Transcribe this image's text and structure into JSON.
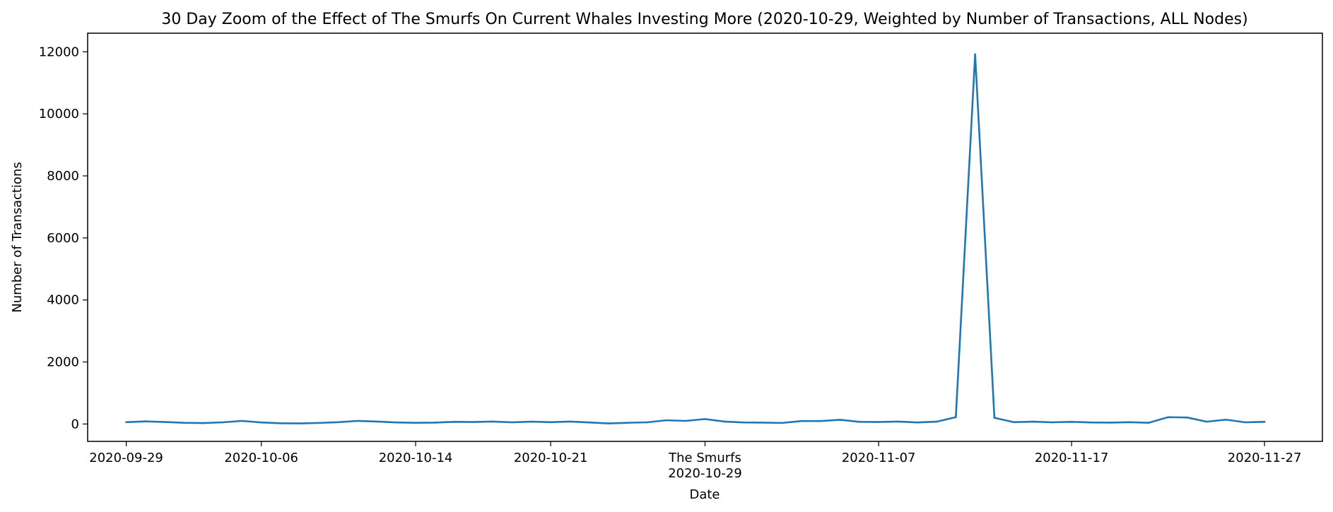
{
  "chart_data": {
    "type": "line",
    "title": "30 Day Zoom of the Effect of The Smurfs On Current Whales Investing More (2020-10-29, Weighted by Number of Transactions, ALL Nodes)",
    "xlabel": "Date",
    "ylabel": "Number of Transactions",
    "ylim": [
      -560,
      12600
    ],
    "xlim": [
      "2020-09-27",
      "2020-11-30"
    ],
    "grid": false,
    "series_color": "#1f77b4",
    "y_ticks": [
      0,
      2000,
      4000,
      6000,
      8000,
      10000,
      12000
    ],
    "x_ticks": [
      {
        "date": "2020-09-29",
        "label": "2020-09-29"
      },
      {
        "date": "2020-10-06",
        "label": "2020-10-06"
      },
      {
        "date": "2020-10-14",
        "label": "2020-10-14"
      },
      {
        "date": "2020-10-21",
        "label": "2020-10-21"
      },
      {
        "date": "2020-10-29",
        "label": "The Smurfs",
        "sublabel": "2020-10-29"
      },
      {
        "date": "2020-11-07",
        "label": "2020-11-07"
      },
      {
        "date": "2020-11-17",
        "label": "2020-11-17"
      },
      {
        "date": "2020-11-27",
        "label": "2020-11-27"
      }
    ],
    "series": [
      {
        "x": [
          "2020-09-29",
          "2020-09-30",
          "2020-10-01",
          "2020-10-02",
          "2020-10-03",
          "2020-10-04",
          "2020-10-05",
          "2020-10-06",
          "2020-10-07",
          "2020-10-08",
          "2020-10-09",
          "2020-10-10",
          "2020-10-11",
          "2020-10-12",
          "2020-10-13",
          "2020-10-14",
          "2020-10-15",
          "2020-10-16",
          "2020-10-17",
          "2020-10-18",
          "2020-10-19",
          "2020-10-20",
          "2020-10-21",
          "2020-10-22",
          "2020-10-23",
          "2020-10-24",
          "2020-10-25",
          "2020-10-26",
          "2020-10-27",
          "2020-10-28",
          "2020-10-29",
          "2020-10-30",
          "2020-10-31",
          "2020-11-01",
          "2020-11-02",
          "2020-11-03",
          "2020-11-04",
          "2020-11-05",
          "2020-11-06",
          "2020-11-07",
          "2020-11-08",
          "2020-11-09",
          "2020-11-10",
          "2020-11-11",
          "2020-11-12",
          "2020-11-13",
          "2020-11-14",
          "2020-11-15",
          "2020-11-16",
          "2020-11-17",
          "2020-11-18",
          "2020-11-19",
          "2020-11-20",
          "2020-11-21",
          "2020-11-22",
          "2020-11-23",
          "2020-11-24",
          "2020-11-25",
          "2020-11-26",
          "2020-11-27"
        ],
        "values": [
          60,
          85,
          65,
          40,
          30,
          55,
          100,
          50,
          25,
          20,
          35,
          60,
          100,
          80,
          50,
          40,
          45,
          70,
          65,
          80,
          55,
          75,
          60,
          80,
          50,
          20,
          40,
          55,
          120,
          100,
          160,
          80,
          50,
          45,
          35,
          95,
          95,
          135,
          70,
          65,
          80,
          50,
          75,
          220,
          11920,
          200,
          60,
          75,
          55,
          70,
          50,
          45,
          60,
          40,
          220,
          210,
          75,
          140,
          55,
          70
        ]
      }
    ]
  }
}
